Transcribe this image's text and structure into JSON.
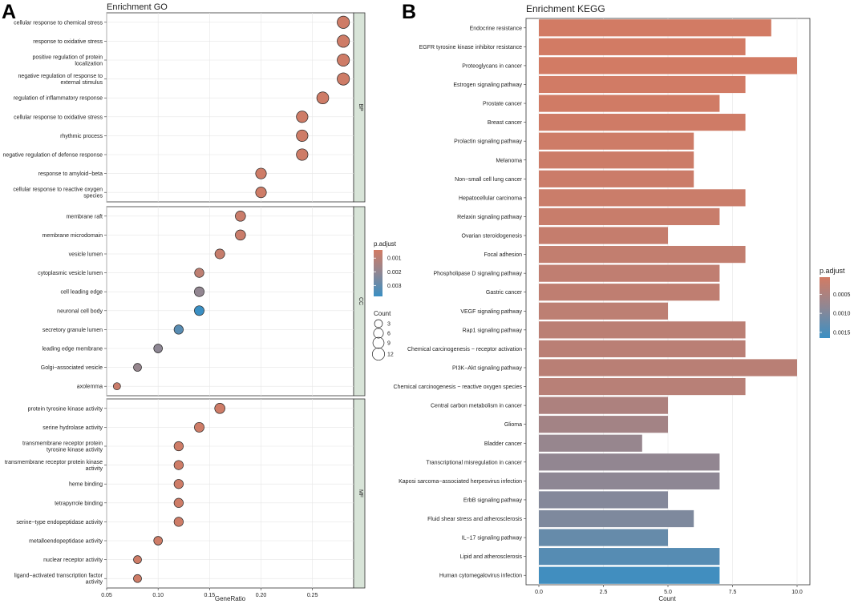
{
  "panel_a_letter": "A",
  "panel_b_letter": "B",
  "chart_data": [
    {
      "type": "scatter",
      "title": "Enrichment GO",
      "xlabel": "GeneRatio",
      "ylabel": "",
      "xlim": [
        0.05,
        0.29
      ],
      "x_ticks": [
        "0.05",
        "0.10",
        "0.15",
        "0.20",
        "0.25"
      ],
      "facets": [
        {
          "name": "BP",
          "terms": [
            {
              "label": "cellular response to chemical stress",
              "gene_ratio": 0.28,
              "count": 12,
              "p_adjust": 0.0005
            },
            {
              "label": "response to oxidative stress",
              "gene_ratio": 0.28,
              "count": 12,
              "p_adjust": 0.0005
            },
            {
              "label": "positive regulation of protein|localization",
              "gene_ratio": 0.28,
              "count": 12,
              "p_adjust": 0.0005
            },
            {
              "label": "negative regulation of response to|external stimulus",
              "gene_ratio": 0.28,
              "count": 12,
              "p_adjust": 0.0005
            },
            {
              "label": "regulation of inflammatory response",
              "gene_ratio": 0.26,
              "count": 11,
              "p_adjust": 0.0005
            },
            {
              "label": "cellular response to oxidative stress",
              "gene_ratio": 0.24,
              "count": 10,
              "p_adjust": 0.0005
            },
            {
              "label": "rhythmic process",
              "gene_ratio": 0.24,
              "count": 10,
              "p_adjust": 0.0005
            },
            {
              "label": "negative regulation of defense response",
              "gene_ratio": 0.24,
              "count": 10,
              "p_adjust": 0.0005
            },
            {
              "label": "response to amyloid−beta",
              "gene_ratio": 0.2,
              "count": 8,
              "p_adjust": 0.0005
            },
            {
              "label": "cellular response to reactive oxygen|species",
              "gene_ratio": 0.2,
              "count": 8,
              "p_adjust": 0.0005
            }
          ]
        },
        {
          "name": "CC",
          "terms": [
            {
              "label": "membrane raft",
              "gene_ratio": 0.18,
              "count": 7,
              "p_adjust": 0.0006
            },
            {
              "label": "membrane microdomain",
              "gene_ratio": 0.18,
              "count": 7,
              "p_adjust": 0.0006
            },
            {
              "label": "vesicle lumen",
              "gene_ratio": 0.16,
              "count": 6,
              "p_adjust": 0.0007
            },
            {
              "label": "cytoplasmic vesicle lumen",
              "gene_ratio": 0.14,
              "count": 5,
              "p_adjust": 0.0009
            },
            {
              "label": "cell leading edge",
              "gene_ratio": 0.14,
              "count": 6,
              "p_adjust": 0.002
            },
            {
              "label": "neuronal cell body",
              "gene_ratio": 0.14,
              "count": 6,
              "p_adjust": 0.0038
            },
            {
              "label": "secretory granule lumen",
              "gene_ratio": 0.12,
              "count": 5,
              "p_adjust": 0.0032
            },
            {
              "label": "leading edge membrane",
              "gene_ratio": 0.1,
              "count": 4,
              "p_adjust": 0.0021
            },
            {
              "label": "Golgi−associated vesicle",
              "gene_ratio": 0.08,
              "count": 3,
              "p_adjust": 0.0019
            },
            {
              "label": "axolemma",
              "gene_ratio": 0.06,
              "count": 2,
              "p_adjust": 0.0006
            }
          ]
        },
        {
          "name": "MF",
          "terms": [
            {
              "label": "protein tyrosine kinase activity",
              "gene_ratio": 0.16,
              "count": 7,
              "p_adjust": 0.0005
            },
            {
              "label": "serine hydrolase activity",
              "gene_ratio": 0.14,
              "count": 6,
              "p_adjust": 0.0005
            },
            {
              "label": "transmembrane receptor protein|tyrosine kinase activity",
              "gene_ratio": 0.12,
              "count": 5,
              "p_adjust": 0.0005
            },
            {
              "label": "transmembrane receptor protein kinase|activity",
              "gene_ratio": 0.12,
              "count": 5,
              "p_adjust": 0.0005
            },
            {
              "label": "heme binding",
              "gene_ratio": 0.12,
              "count": 5,
              "p_adjust": 0.0005
            },
            {
              "label": "tetrapyrrole binding",
              "gene_ratio": 0.12,
              "count": 5,
              "p_adjust": 0.0005
            },
            {
              "label": "serine−type endopeptidase activity",
              "gene_ratio": 0.12,
              "count": 5,
              "p_adjust": 0.0005
            },
            {
              "label": "metalloendopeptidase activity",
              "gene_ratio": 0.1,
              "count": 4,
              "p_adjust": 0.0005
            },
            {
              "label": "nuclear receptor activity",
              "gene_ratio": 0.08,
              "count": 3,
              "p_adjust": 0.0005
            },
            {
              "label": "ligand−activated transcription factor|activity",
              "gene_ratio": 0.08,
              "count": 3,
              "p_adjust": 0.0005
            }
          ]
        }
      ],
      "color_legend": {
        "title": "p.adjust",
        "ticks": [
          "0.001",
          "0.002",
          "0.003"
        ],
        "tick_values": [
          0.001,
          0.002,
          0.003
        ],
        "range": [
          0.0004,
          0.0038
        ]
      },
      "size_legend": {
        "title": "Count",
        "ticks": [
          "3",
          "6",
          "9",
          "12"
        ],
        "values": [
          3,
          6,
          9,
          12
        ]
      }
    },
    {
      "type": "bar",
      "orientation": "horizontal",
      "title": "Enrichment KEGG",
      "xlabel": "Count",
      "ylabel": "",
      "xlim": [
        0,
        10
      ],
      "x_ticks": [
        "0.0",
        "2.5",
        "5.0",
        "7.5",
        "10.0"
      ],
      "categories": [
        "Endocrine resistance",
        "EGFR tyrosine kinase inhibitor resistance",
        "Proteoglycans in cancer",
        "Estrogen signaling pathway",
        "Prostate cancer",
        "Breast cancer",
        "Prolactin signaling pathway",
        "Melanoma",
        "Non−small cell lung cancer",
        "Hepatocellular carcinoma",
        "Relaxin signaling pathway",
        "Ovarian steroidogenesis",
        "Focal adhesion",
        "Phospholipase D signaling pathway",
        "Gastric cancer",
        "VEGF signaling pathway",
        "Rap1 signaling pathway",
        "Chemical carcinogenesis − receptor activation",
        "PI3K−Akt signaling pathway",
        "Chemical carcinogenesis − reactive oxygen species",
        "Central carbon metabolism in cancer",
        "Glioma",
        "Bladder cancer",
        "Transcriptional misregulation in cancer",
        "Kaposi sarcoma−associated herpesvirus infection",
        "ErbB signaling pathway",
        "Fluid shear stress and atherosclerosis",
        "IL−17 signaling pathway",
        "Lipid and atherosclerosis",
        "Human cytomegalovirus infection"
      ],
      "values": [
        9,
        8,
        10,
        8,
        7,
        8,
        6,
        6,
        6,
        8,
        7,
        5,
        8,
        7,
        7,
        5,
        8,
        8,
        10,
        8,
        5,
        5,
        4,
        7,
        7,
        5,
        6,
        5,
        7,
        7
      ],
      "p_adjust": [
        5e-05,
        5e-05,
        5e-05,
        6e-05,
        7e-05,
        8e-05,
        0.0001,
        0.00012,
        0.00013,
        0.00015,
        0.00017,
        0.0002,
        0.00024,
        0.00026,
        0.00027,
        0.0003,
        0.00032,
        0.00033,
        0.00034,
        0.00036,
        0.00048,
        0.0006,
        0.00075,
        0.0008,
        0.00085,
        0.00095,
        0.001,
        0.00123,
        0.00138,
        0.00158
      ],
      "color_legend": {
        "title": "p.adjust",
        "ticks": [
          "0.0005",
          "0.0010",
          "0.0015"
        ],
        "tick_values": [
          0.0005,
          0.001,
          0.0015
        ],
        "range": [
          5e-05,
          0.00165
        ]
      }
    }
  ]
}
